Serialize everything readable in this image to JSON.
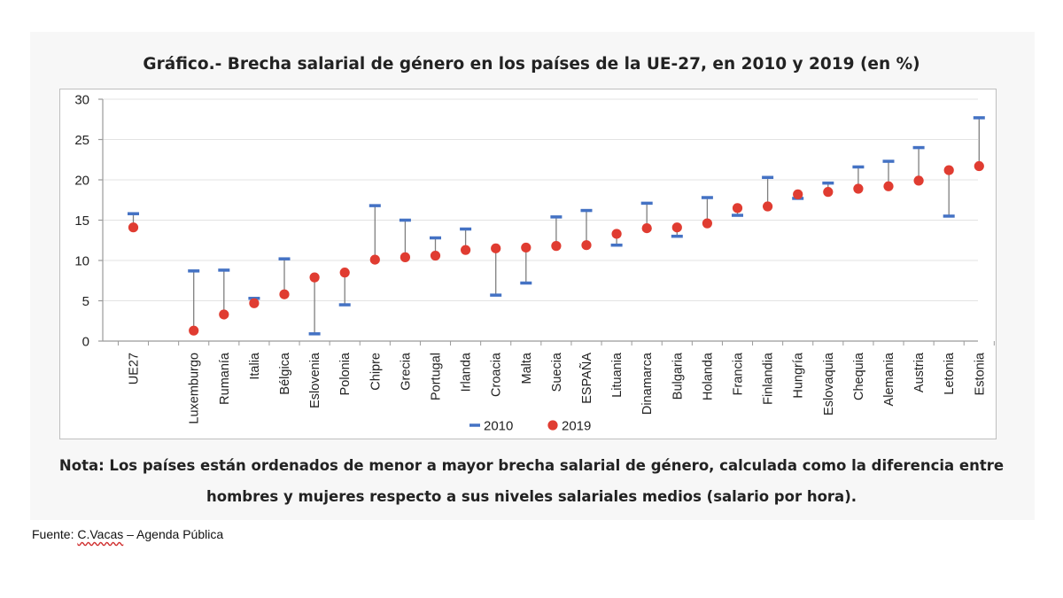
{
  "chart_data": {
    "type": "scatter",
    "title": "Gráfico.- Brecha salarial de género en los países de la UE-27, en 2010 y 2019 (en %)",
    "xlabel": "",
    "ylabel": "",
    "ylim": [
      0,
      30
    ],
    "yticks": [
      0,
      5,
      10,
      15,
      20,
      25,
      30
    ],
    "grid": true,
    "legend_position": "bottom-center",
    "categories": [
      "UE27",
      "",
      "Luxemburgo",
      "Rumanía",
      "Italia",
      "Bélgica",
      "Eslovenia",
      "Polonia",
      "Chipre",
      "Grecia",
      "Portugal",
      "Irlanda",
      "Croacia",
      "Malta",
      "Suecia",
      "ESPAÑA",
      "Lituania",
      "Dinamarca",
      "Bulgaria",
      "Holanda",
      "Francia",
      "Finlandia",
      "Hungría",
      "Eslovaquia",
      "Chequia",
      "Alemania",
      "Austria",
      "Letonia",
      "Estonia"
    ],
    "series": [
      {
        "name": "2010",
        "marker": "dash",
        "color": "#4472c4",
        "values": [
          15.8,
          null,
          8.7,
          8.8,
          5.3,
          10.2,
          0.9,
          4.5,
          16.8,
          15.0,
          12.8,
          13.9,
          5.7,
          7.2,
          15.4,
          16.2,
          11.9,
          17.1,
          13.0,
          17.8,
          15.6,
          20.3,
          17.7,
          19.6,
          21.6,
          22.3,
          24.0,
          15.5,
          27.7
        ]
      },
      {
        "name": "2019",
        "marker": "circle",
        "color": "#e03c31",
        "values": [
          14.1,
          null,
          1.3,
          3.3,
          4.7,
          5.8,
          7.9,
          8.5,
          10.1,
          10.4,
          10.6,
          11.3,
          11.5,
          11.6,
          11.8,
          11.9,
          13.3,
          14.0,
          14.1,
          14.6,
          16.5,
          16.7,
          18.2,
          18.5,
          18.9,
          19.2,
          19.9,
          21.2,
          21.7
        ]
      }
    ]
  },
  "note": {
    "line1": "Nota: Los países están ordenados de menor a mayor brecha salarial de género, calculada como la diferencia entre",
    "line2": "hombres y mujeres respecto a sus niveles salariales medios (salario por hora)."
  },
  "source": {
    "prefix": "Fuente: ",
    "author": "C.Vacas",
    "suffix": " – Agenda Pública"
  }
}
